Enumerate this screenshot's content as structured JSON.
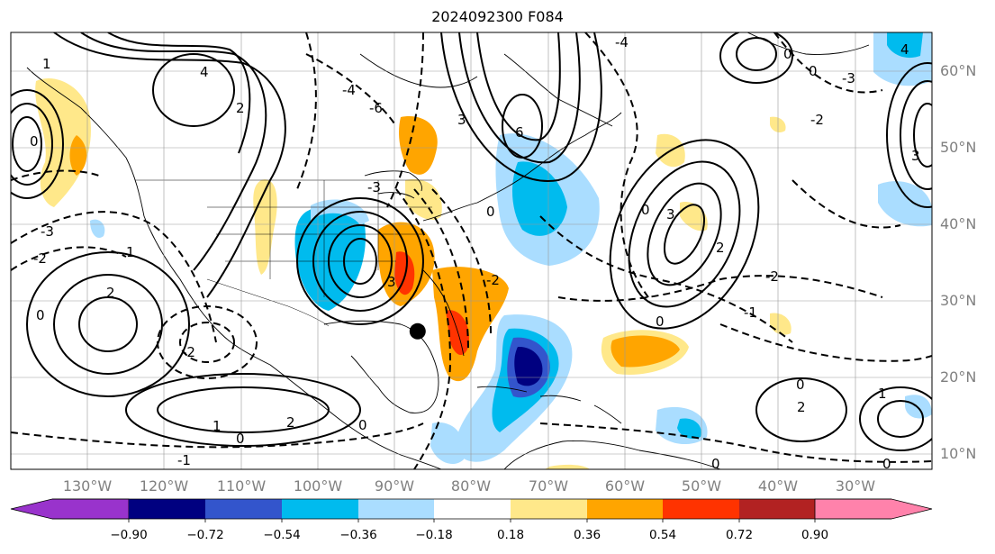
{
  "title": "2024092300 F084",
  "latitude_labels": [
    "60°N",
    "50°N",
    "40°N",
    "30°N",
    "20°N",
    "10°N"
  ],
  "longitude_labels": [
    "130°W",
    "120°W",
    "110°W",
    "100°W",
    "90°W",
    "80°W",
    "70°W",
    "60°W",
    "50°W",
    "40°W",
    "30°W"
  ],
  "colorbar": {
    "tick_labels": [
      "−0.90",
      "−0.72",
      "−0.54",
      "−0.36",
      "−0.18",
      "0.18",
      "0.36",
      "0.54",
      "0.72",
      "0.90"
    ],
    "colors": [
      "#9933cc",
      "#000080",
      "#3355cc",
      "#00bbee",
      "#aaddff",
      "#ffffff",
      "#ffe88a",
      "#ffa500",
      "#ff3300",
      "#b22222",
      "#ff82ab"
    ]
  },
  "contour_labels": [
    "1",
    "2",
    "3",
    "4",
    "6",
    "0",
    "-1",
    "-2",
    "-3",
    "-4",
    "-6"
  ],
  "marker": {
    "lon": -85.0,
    "lat": 26.0,
    "color": "#000000"
  },
  "map_extent": {
    "lon_min": -138,
    "lon_max": -18,
    "lat_min": 8,
    "lat_max": 65
  }
}
